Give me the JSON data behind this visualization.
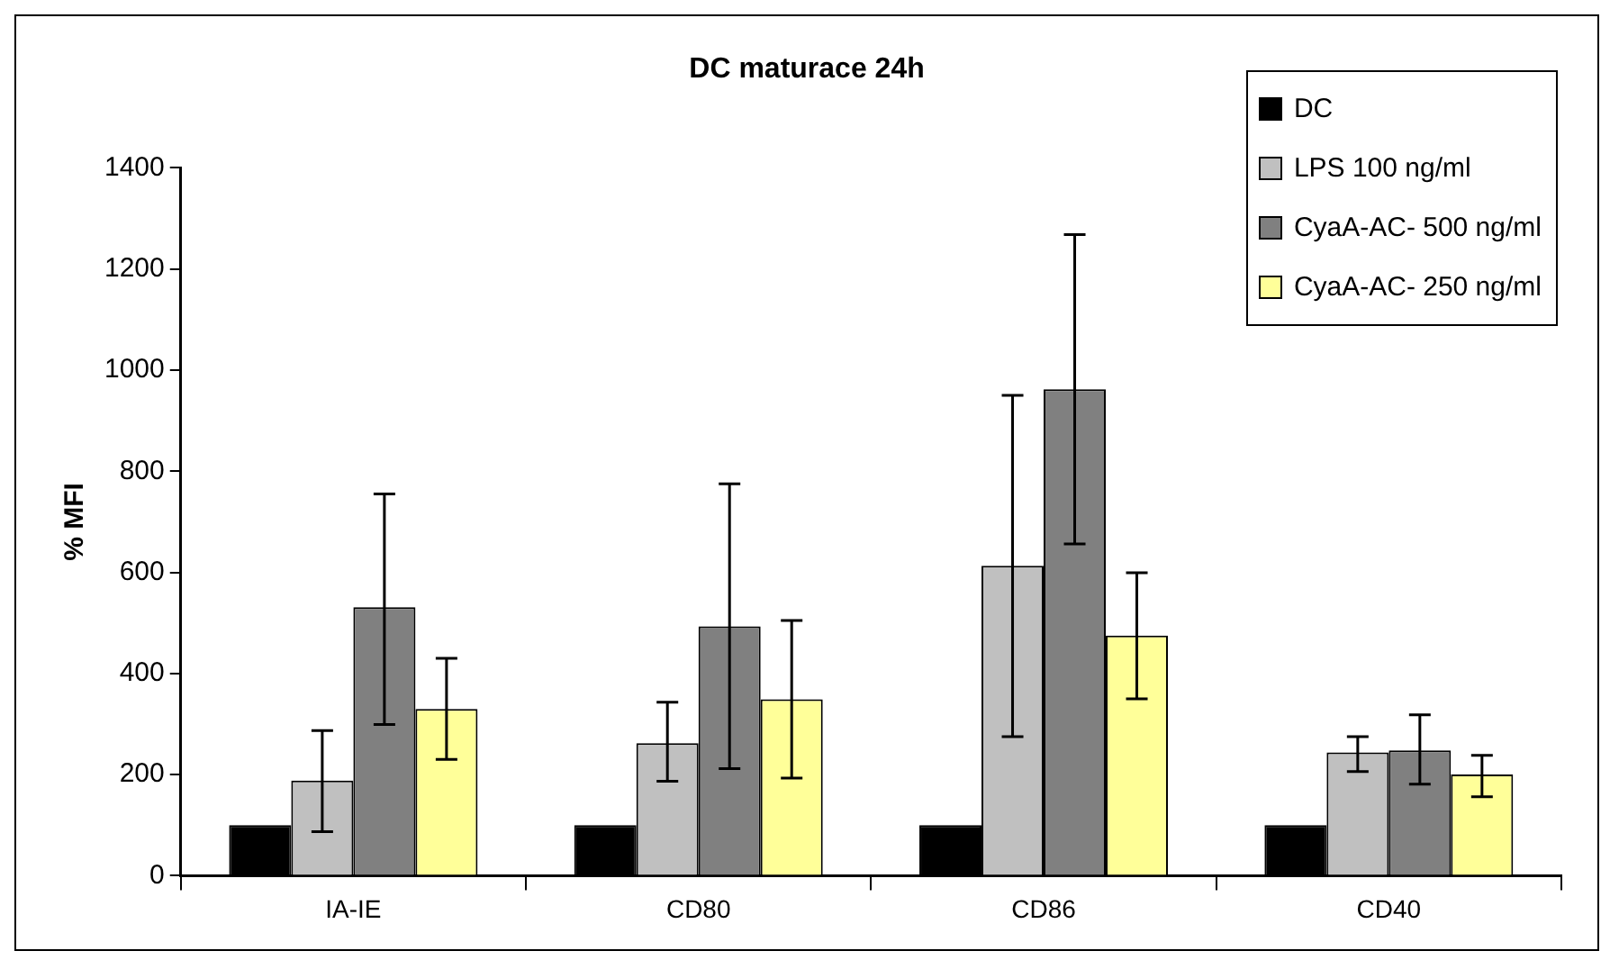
{
  "chart_data": {
    "type": "bar",
    "title": "DC maturace 24h",
    "ylabel": "% MFI",
    "categories": [
      "IA-IE",
      "CD80",
      "CD86",
      "CD40"
    ],
    "ylim": [
      0,
      1400
    ],
    "yticks": [
      0,
      200,
      400,
      600,
      800,
      1000,
      1200,
      1400
    ],
    "grid": false,
    "legend": "top right",
    "series": [
      {
        "name": "DC",
        "color": "#000000",
        "values": [
          100,
          100,
          100,
          100
        ]
      },
      {
        "name": "LPS 100 ng/ml",
        "color": "#c0c0c0",
        "values": [
          188,
          262,
          613,
          244
        ],
        "errors": [
          [
            87,
            287
          ],
          [
            187,
            343
          ],
          [
            275,
            950
          ],
          [
            206,
            275
          ]
        ]
      },
      {
        "name": "CyaA-AC- 500 ng/ml",
        "color": "#808080",
        "values": [
          531,
          493,
          962,
          248
        ],
        "errors": [
          [
            299,
            755
          ],
          [
            212,
            775
          ],
          [
            656,
            1268
          ],
          [
            181,
            318
          ]
        ]
      },
      {
        "name": "CyaA-AC- 250 ng/ml",
        "color": "#ffff99",
        "values": [
          330,
          349,
          475,
          200
        ],
        "errors": [
          [
            230,
            430
          ],
          [
            193,
            505
          ],
          [
            350,
            599
          ],
          [
            156,
            238
          ]
        ]
      }
    ]
  }
}
